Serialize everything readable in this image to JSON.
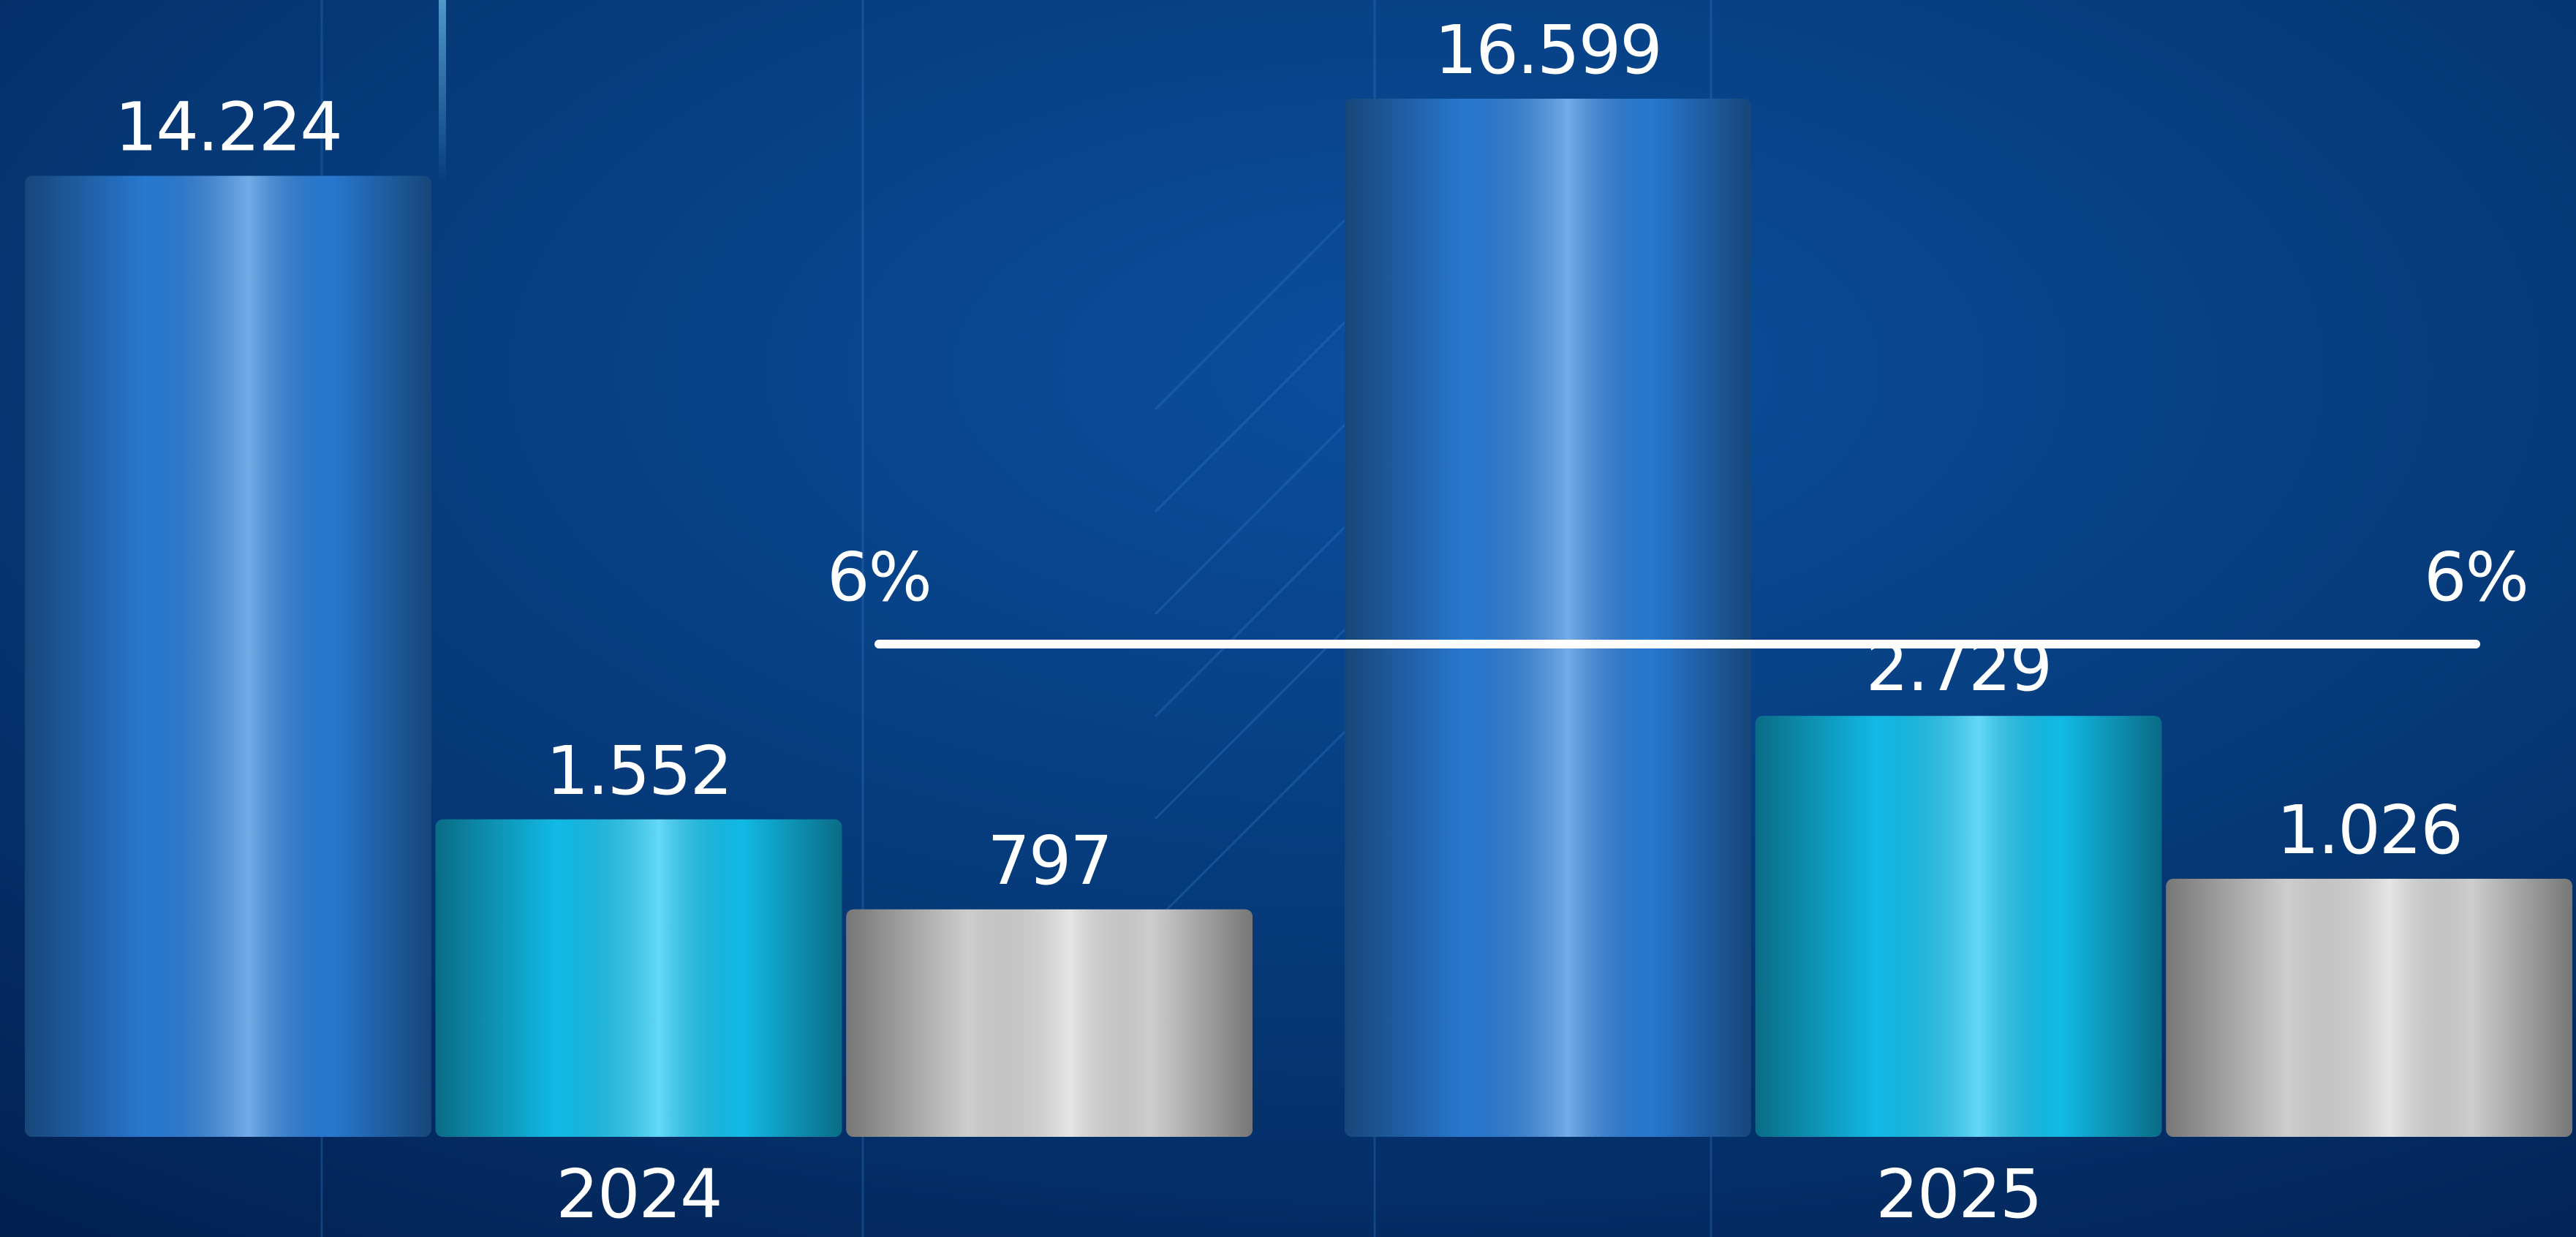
{
  "chart_data": {
    "type": "bar",
    "categories": [
      "2024",
      "2025"
    ],
    "series": [
      {
        "color": "#2a7fdc",
        "values": [
          14224,
          16599
        ],
        "value_labels": [
          "14.224",
          "16.599"
        ]
      },
      {
        "color": "#12c4f2",
        "values": [
          1552,
          2729
        ],
        "value_labels": [
          "1.552",
          "2.729"
        ]
      },
      {
        "color": "#d8d8d8",
        "values": [
          797,
          1026
        ],
        "value_labels": [
          "797",
          "1.026"
        ]
      }
    ],
    "line": {
      "color": "#ffffff",
      "values": [
        6,
        6
      ],
      "value_labels": [
        "6%",
        "6%"
      ]
    }
  }
}
